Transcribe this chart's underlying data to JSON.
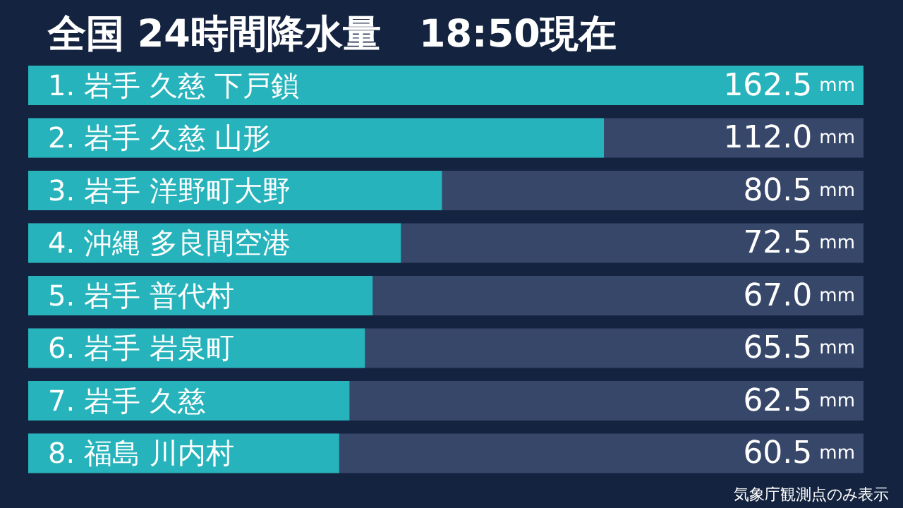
{
  "chart_data": {
    "type": "bar",
    "orientation": "horizontal",
    "title": "全国 24時間降水量　18:50現在",
    "categories": [
      "1. 岩手 久慈 下戸鎖",
      "2. 岩手 久慈 山形",
      "3. 岩手 洋野町大野",
      "4. 沖縄 多良間空港",
      "5. 岩手 普代村",
      "6. 岩手 岩泉町",
      "7. 岩手 久慈",
      "8. 福島 川内村"
    ],
    "values": [
      162.5,
      112.0,
      80.5,
      72.5,
      67.0,
      65.5,
      62.5,
      60.5
    ],
    "value_labels": [
      "162.5 mm",
      "112.0 mm",
      "80.5 mm",
      "72.5 mm",
      "67.0 mm",
      "65.5 mm",
      "62.5 mm",
      "60.5 mm"
    ],
    "color": "#27b3bb",
    "annotations": [
      "気象庁観測点のみ表示"
    ]
  }
}
